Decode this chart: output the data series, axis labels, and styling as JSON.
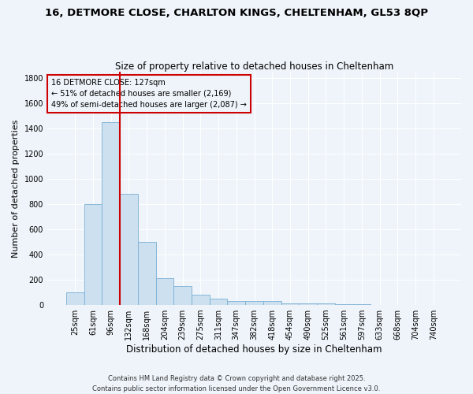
{
  "title_line1": "16, DETMORE CLOSE, CHARLTON KINGS, CHELTENHAM, GL53 8QP",
  "title_line2": "Size of property relative to detached houses in Cheltenham",
  "xlabel": "Distribution of detached houses by size in Cheltenham",
  "ylabel": "Number of detached properties",
  "categories": [
    "25sqm",
    "61sqm",
    "96sqm",
    "132sqm",
    "168sqm",
    "204sqm",
    "239sqm",
    "275sqm",
    "311sqm",
    "347sqm",
    "382sqm",
    "418sqm",
    "454sqm",
    "490sqm",
    "525sqm",
    "561sqm",
    "597sqm",
    "633sqm",
    "668sqm",
    "704sqm",
    "740sqm"
  ],
  "values": [
    100,
    800,
    1450,
    880,
    500,
    210,
    150,
    80,
    50,
    30,
    30,
    30,
    15,
    15,
    10,
    8,
    5,
    3,
    2,
    2,
    1
  ],
  "bar_color": "#cce0f0",
  "bar_edge_color": "#7aafd4",
  "vline_pos": 2.5,
  "vline_color": "#cc0000",
  "annotation_text": "16 DETMORE CLOSE: 127sqm\n← 51% of detached houses are smaller (2,169)\n49% of semi-detached houses are larger (2,087) →",
  "annotation_box_facecolor": "#eef4fa",
  "annotation_box_edgecolor": "#cc0000",
  "ylim": [
    0,
    1850
  ],
  "yticks": [
    0,
    200,
    400,
    600,
    800,
    1000,
    1200,
    1400,
    1600,
    1800
  ],
  "footer": "Contains HM Land Registry data © Crown copyright and database right 2025.\nContains public sector information licensed under the Open Government Licence v3.0.",
  "bg_color": "#eef4fa",
  "grid_color": "#ffffff",
  "title_fontsize": 9.5,
  "subtitle_fontsize": 8.5,
  "ylabel_fontsize": 8,
  "xlabel_fontsize": 8.5,
  "tick_fontsize": 7,
  "footer_fontsize": 6
}
